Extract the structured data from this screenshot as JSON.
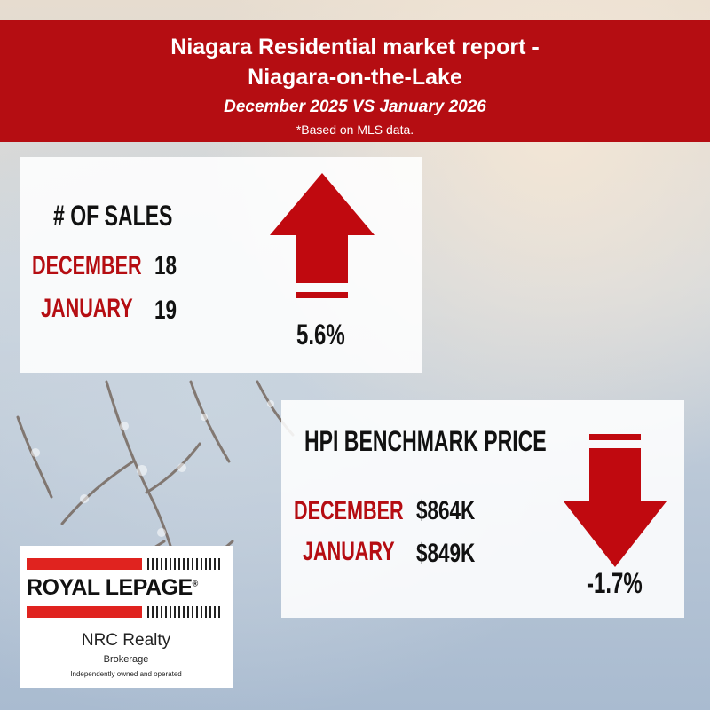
{
  "header": {
    "title_line1": "Niagara Residential market report -",
    "title_line2": "Niagara-on-the-Lake",
    "subtitle": "December 2025 VS January 2026",
    "note": "*Based on MLS data."
  },
  "sales": {
    "heading": "# OF SALES",
    "rows": [
      {
        "label": "DECEMBER",
        "value": "18"
      },
      {
        "label": "JANUARY",
        "value": "19"
      }
    ],
    "change": "5.6%",
    "direction": "up-arrow-icon"
  },
  "hpi": {
    "heading": "HPI BENCHMARK PRICE",
    "rows": [
      {
        "label": "DECEMBER",
        "value": "$864K"
      },
      {
        "label": "JANUARY",
        "value": "$849K"
      }
    ],
    "change": "-1.7%",
    "direction": "down-arrow-icon"
  },
  "logo": {
    "brand": "ROYAL LEPAGE",
    "office": "NRC Realty",
    "type": "Brokerage",
    "tagline": "Independently owned and operated"
  },
  "colors": {
    "accent_red": "#b50d12",
    "arrow_red": "#c0090f",
    "brand_red": "#e0231f"
  }
}
